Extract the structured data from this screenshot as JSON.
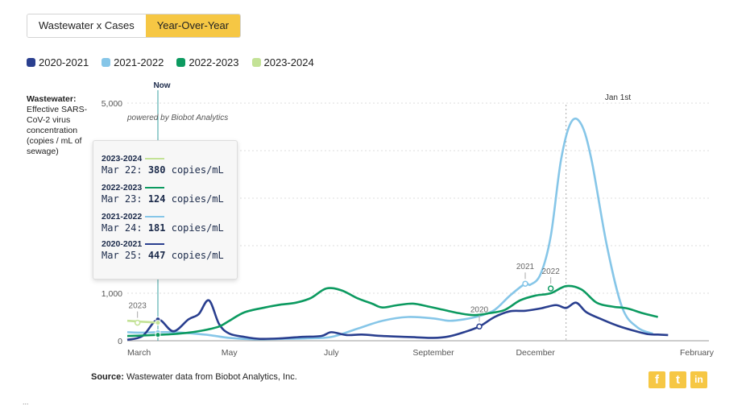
{
  "tabs": [
    {
      "label": "Wastewater x Cases",
      "active": false
    },
    {
      "label": "Year-Over-Year",
      "active": true
    }
  ],
  "ylabel": {
    "bold": "Wastewater:",
    "text": "Effective SARS-CoV-2 virus concentration (copies / mL of sewage)"
  },
  "watermark": "powered by Biobot Analytics",
  "now_label": "Now",
  "jan_label": "Jan 1st",
  "tooltip": [
    {
      "year": "2023-2024",
      "date": "Mar 22:",
      "value": "380",
      "unit": "copies/mL",
      "color": "#c3e296"
    },
    {
      "year": "2022-2023",
      "date": "Mar 23:",
      "value": "124",
      "unit": "copies/mL",
      "color": "#0c9a60"
    },
    {
      "year": "2021-2022",
      "date": "Mar 24:",
      "value": "181",
      "unit": "copies/mL",
      "color": "#86c6e8"
    },
    {
      "year": "2020-2021",
      "date": "Mar 25:",
      "value": "447",
      "unit": "copies/mL",
      "color": "#2a3f8f"
    }
  ],
  "source": {
    "bold": "Source:",
    "text": "Wastewater data from Biobot Analytics, Inc."
  },
  "share": [
    "f",
    "t",
    "in"
  ],
  "bottom_text": "...",
  "chart_data": {
    "type": "line",
    "ylim": [
      0,
      5000
    ],
    "xlim": [
      0,
      11.4
    ],
    "y_ticks": [
      {
        "value": 0,
        "label": "0"
      },
      {
        "value": 1000,
        "label": "1,000"
      },
      {
        "value": 5000,
        "label": "5,000"
      }
    ],
    "x_ticks": [
      {
        "value": 0,
        "label": "March"
      },
      {
        "value": 2,
        "label": "May"
      },
      {
        "value": 4,
        "label": "July"
      },
      {
        "value": 6,
        "label": "September"
      },
      {
        "value": 8,
        "label": "December"
      },
      {
        "value": 10,
        "label": "February"
      }
    ],
    "now_x": 0.6,
    "jan_x": 8.6,
    "series": [
      {
        "name": "2020-2021",
        "color": "#2a3f8f",
        "x": [
          0,
          0.3,
          0.6,
          0.9,
          1.2,
          1.4,
          1.6,
          1.8,
          2.0,
          2.3,
          2.6,
          3.0,
          3.4,
          3.8,
          4.0,
          4.3,
          4.6,
          5.0,
          5.5,
          6.0,
          6.3,
          6.6,
          6.9,
          7.2,
          7.5,
          7.8,
          8.1,
          8.4,
          8.6,
          8.8,
          9.0,
          9.3,
          9.6,
          9.9,
          10.2,
          10.4,
          10.6
        ],
        "y": [
          20,
          100,
          447,
          200,
          450,
          560,
          850,
          350,
          150,
          80,
          40,
          50,
          80,
          100,
          180,
          120,
          130,
          100,
          80,
          60,
          90,
          180,
          300,
          500,
          620,
          630,
          680,
          750,
          690,
          800,
          600,
          450,
          320,
          220,
          140,
          130,
          120
        ]
      },
      {
        "name": "2021-2022",
        "color": "#86c6e8",
        "x": [
          0,
          0.3,
          0.6,
          0.9,
          1.2,
          1.6,
          2.0,
          2.5,
          3.0,
          3.5,
          4.0,
          4.5,
          5.0,
          5.5,
          6.0,
          6.3,
          6.6,
          6.9,
          7.2,
          7.5,
          7.8,
          7.9,
          8.1,
          8.3,
          8.5,
          8.7,
          8.9,
          9.1,
          9.4,
          9.7,
          10.0,
          10.3
        ],
        "y": [
          180,
          170,
          181,
          180,
          160,
          120,
          60,
          30,
          40,
          50,
          80,
          250,
          420,
          500,
          470,
          420,
          450,
          520,
          650,
          950,
          1200,
          1180,
          1400,
          2200,
          3800,
          4600,
          4550,
          3800,
          2000,
          700,
          280,
          150
        ]
      },
      {
        "name": "2022-2023",
        "color": "#0c9a60",
        "x": [
          0,
          0.3,
          0.6,
          0.9,
          1.2,
          1.5,
          1.8,
          2.0,
          2.3,
          2.7,
          3.0,
          3.3,
          3.6,
          3.9,
          4.2,
          4.5,
          4.8,
          5.0,
          5.3,
          5.6,
          5.9,
          6.2,
          6.5,
          6.8,
          7.1,
          7.4,
          7.7,
          8.0,
          8.3,
          8.6,
          8.9,
          9.2,
          9.5,
          9.8,
          10.1,
          10.4
        ],
        "y": [
          100,
          110,
          124,
          140,
          170,
          220,
          300,
          420,
          600,
          700,
          760,
          800,
          900,
          1100,
          1060,
          900,
          780,
          700,
          750,
          780,
          720,
          650,
          580,
          540,
          580,
          650,
          850,
          950,
          1000,
          1150,
          1080,
          800,
          720,
          680,
          580,
          500
        ]
      },
      {
        "name": "2023-2024",
        "color": "#c3e296",
        "x": [
          0,
          0.3,
          0.6
        ],
        "y": [
          420,
          400,
          380
        ]
      }
    ],
    "annotations": [
      {
        "label": "2023",
        "x": 0.2,
        "y": 380,
        "series": "2023-2024"
      },
      {
        "label": "2020",
        "x": 6.9,
        "y": 300,
        "series": "2020-2021"
      },
      {
        "label": "2021",
        "x": 7.8,
        "y": 1200,
        "series": "2021-2022"
      },
      {
        "label": "2022",
        "x": 8.3,
        "y": 1100,
        "series": "2022-2023"
      }
    ]
  }
}
